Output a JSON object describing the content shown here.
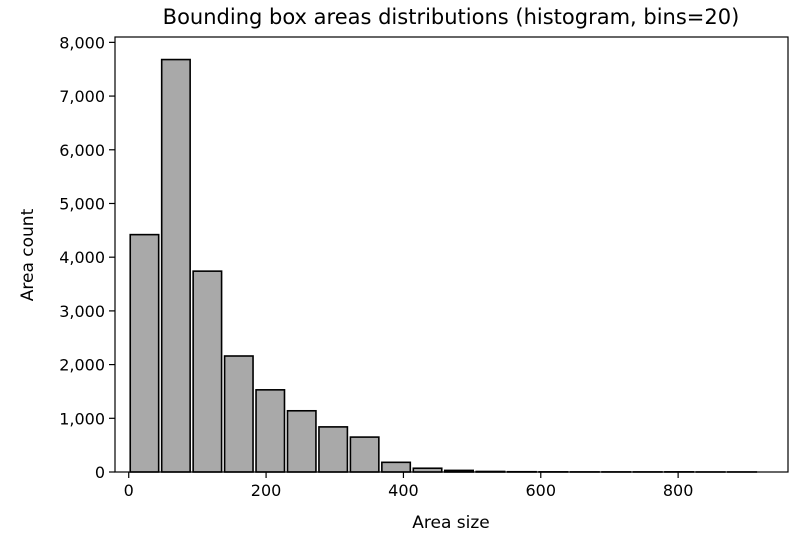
{
  "chart_data": {
    "type": "bar",
    "title": "Bounding box areas distributions (histogram, bins=20)",
    "xlabel": "Area size",
    "ylabel": "Area count",
    "xlim": [
      -20,
      960
    ],
    "ylim": [
      0,
      8100
    ],
    "x_ticks": [
      0,
      200,
      400,
      600,
      800
    ],
    "x_tick_labels": [
      "0",
      "200",
      "400",
      "600",
      "800"
    ],
    "y_ticks": [
      0,
      1000,
      2000,
      3000,
      4000,
      5000,
      6000,
      7000,
      8000
    ],
    "y_tick_labels": [
      "0",
      "1,000",
      "2,000",
      "3,000",
      "4,000",
      "5,000",
      "6,000",
      "7,000",
      "8,000"
    ],
    "bin_edges": [
      0,
      45.8,
      91.6,
      137.4,
      183.2,
      229,
      274.8,
      320.6,
      366.4,
      412.2,
      458,
      503.8,
      549.6,
      595.4,
      641.2,
      687,
      732.8,
      778.6,
      824.4,
      870.2,
      916
    ],
    "values": [
      4420,
      7680,
      3740,
      2160,
      1530,
      1140,
      840,
      650,
      180,
      70,
      30,
      10,
      5,
      3,
      2,
      2,
      2,
      3,
      1,
      1
    ],
    "bar_color": "#a9a9a9",
    "edge_color": "#000000",
    "grid": false
  }
}
